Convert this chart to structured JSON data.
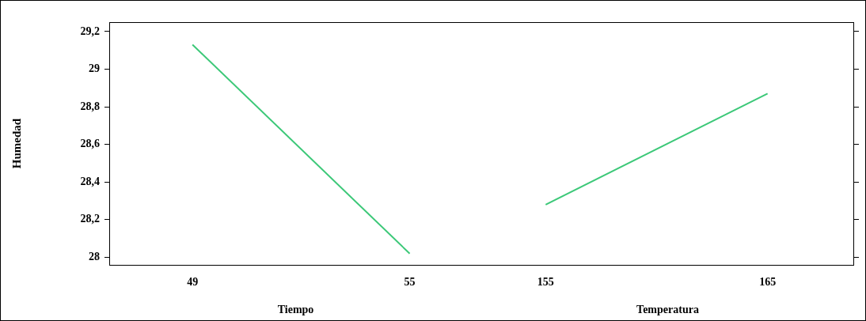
{
  "chart_data": [
    {
      "type": "line",
      "xlabel": "Tiempo",
      "ylabel": "Humedad",
      "x": [
        49,
        55
      ],
      "series": [
        {
          "color": "#3cc878",
          "values": [
            29.13,
            28.02
          ]
        }
      ],
      "xlim": [
        46.7,
        57
      ],
      "xticks": [
        49,
        55
      ],
      "ylim": [
        27.96,
        29.25
      ],
      "yticks": [
        28,
        {
          "value": 28.2,
          "label": "28,2"
        },
        {
          "value": 28.4,
          "label": "28,4"
        },
        {
          "value": 28.6,
          "label": "28,6"
        },
        {
          "value": 28.8,
          "label": "28,8"
        },
        29,
        {
          "value": 29.2,
          "label": "29,2"
        }
      ]
    },
    {
      "type": "line",
      "xlabel": "Temperatura",
      "x": [
        155,
        165
      ],
      "series": [
        {
          "color": "#3cc878",
          "values": [
            28.28,
            28.87
          ]
        }
      ],
      "xlim": [
        152.1,
        168.9
      ],
      "xticks": [
        155,
        165
      ],
      "ylim": [
        27.96,
        29.25
      ],
      "yticks": [
        28,
        28.2,
        28.4,
        28.6,
        28.8,
        29,
        29.2
      ],
      "tick_labels": "x"
    }
  ]
}
